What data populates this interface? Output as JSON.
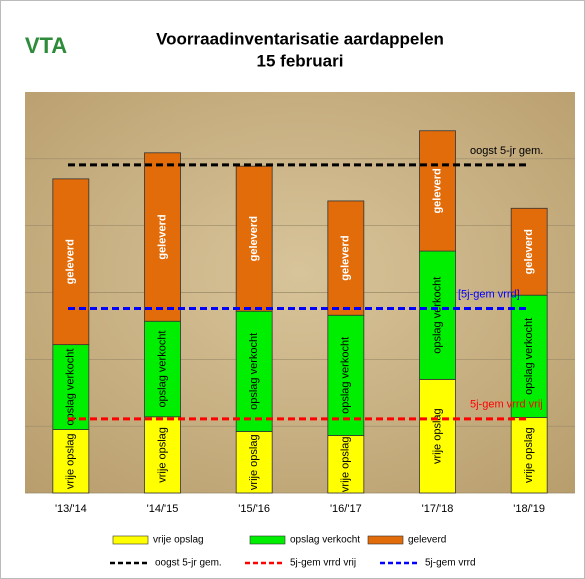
{
  "chart_data": {
    "type": "stacked-bar",
    "logo": "VTA",
    "title": "Voorraadinventarisatie aardappelen",
    "subtitle": "15 februari",
    "categories": [
      "'13/'14",
      "'14/'15",
      "'15/'16",
      "'16/'17",
      "'17/'18",
      "'18/'19"
    ],
    "series": [
      {
        "name": "vrije opslag",
        "color": "#ffff00",
        "values": [
          0.95,
          1.14,
          0.92,
          0.86,
          1.7,
          1.13
        ]
      },
      {
        "name": "opslag verkocht",
        "color": "#00ee00",
        "values": [
          1.27,
          1.43,
          1.8,
          1.8,
          1.92,
          1.83
        ]
      },
      {
        "name": "geleverd",
        "color": "#e36c0a",
        "values": [
          2.48,
          2.52,
          2.17,
          1.71,
          1.8,
          1.3
        ]
      }
    ],
    "reference_lines": [
      {
        "name": "oogst 5-jr gem.",
        "label": "oogst 5-jr gem.",
        "color": "#000000",
        "value": 4.91
      },
      {
        "name": "5j-gem vrrd vrij",
        "label": "5j-gem vrrd vrij",
        "color": "#ff0000",
        "value": 1.11
      },
      {
        "name": "5j-gem vrrd",
        "label": "[5j-gem vrrd]",
        "color": "#0000ff",
        "value": 2.76
      }
    ],
    "ylim": [
      0,
      6
    ],
    "yticks": [
      0,
      1,
      2,
      3,
      4,
      5
    ],
    "grid": true
  }
}
